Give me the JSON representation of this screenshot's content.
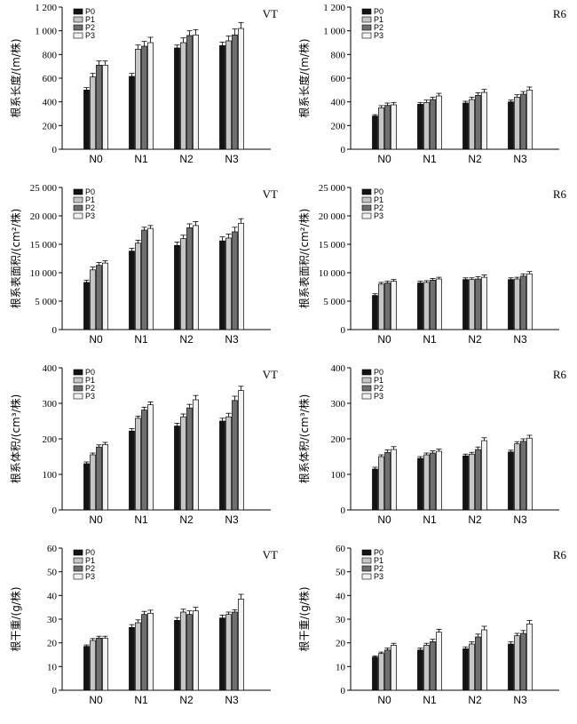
{
  "figure": {
    "legend_labels": [
      "P0",
      "P1",
      "P2",
      "P3"
    ],
    "colors": [
      "#141414",
      "#c6c6c6",
      "#6f6f6f",
      "#f2f2f2"
    ]
  },
  "chart_data": [
    {
      "type": "bar",
      "tag": "VT",
      "ylabel": "根系长度/(m/株)",
      "ylim": [
        0,
        1200
      ],
      "yticks": [
        0,
        200,
        400,
        600,
        800,
        1000,
        1200
      ],
      "ytick_labels": [
        "0",
        "200",
        "400",
        "600",
        "800",
        "1 000",
        "1 200"
      ],
      "categories": [
        "N0",
        "N1",
        "N2",
        "N3"
      ],
      "legend": "top-left",
      "grid": false,
      "series": [
        {
          "name": "P0",
          "values": [
            500,
            615,
            855,
            875
          ],
          "errors": [
            20,
            25,
            25,
            30
          ]
        },
        {
          "name": "P1",
          "values": [
            610,
            845,
            900,
            915
          ],
          "errors": [
            30,
            35,
            40,
            40
          ]
        },
        {
          "name": "P2",
          "values": [
            710,
            870,
            960,
            965
          ],
          "errors": [
            35,
            40,
            40,
            50
          ]
        },
        {
          "name": "P3",
          "values": [
            710,
            900,
            965,
            1020
          ],
          "errors": [
            35,
            45,
            45,
            50
          ]
        }
      ]
    },
    {
      "type": "bar",
      "tag": "R6",
      "ylabel": "根系长度/(m/株)",
      "ylim": [
        0,
        1200
      ],
      "yticks": [
        0,
        200,
        400,
        600,
        800,
        1000,
        1200
      ],
      "ytick_labels": [
        "0",
        "200",
        "400",
        "600",
        "800",
        "1 000",
        "1 200"
      ],
      "categories": [
        "N0",
        "N1",
        "N2",
        "N3"
      ],
      "legend": "top-left",
      "grid": false,
      "series": [
        {
          "name": "P0",
          "values": [
            280,
            380,
            390,
            400
          ],
          "errors": [
            12,
            15,
            15,
            15
          ]
        },
        {
          "name": "P1",
          "values": [
            350,
            395,
            420,
            440
          ],
          "errors": [
            18,
            20,
            20,
            20
          ]
        },
        {
          "name": "P2",
          "values": [
            370,
            420,
            455,
            465
          ],
          "errors": [
            20,
            20,
            22,
            22
          ]
        },
        {
          "name": "P3",
          "values": [
            375,
            450,
            480,
            500
          ],
          "errors": [
            20,
            22,
            25,
            25
          ]
        }
      ]
    },
    {
      "type": "bar",
      "tag": "VT",
      "ylabel": "根系表面积/(cm²/株)",
      "ylim": [
        0,
        25000
      ],
      "yticks": [
        0,
        5000,
        10000,
        15000,
        20000,
        25000
      ],
      "ytick_labels": [
        "0",
        "5 000",
        "10 000",
        "15 000",
        "20 000",
        "25 000"
      ],
      "categories": [
        "N0",
        "N1",
        "N2",
        "N3"
      ],
      "legend": "top-left",
      "grid": false,
      "series": [
        {
          "name": "P0",
          "values": [
            8300,
            13800,
            14800,
            15600
          ],
          "errors": [
            400,
            500,
            600,
            700
          ]
        },
        {
          "name": "P1",
          "values": [
            10500,
            15200,
            16000,
            16100
          ],
          "errors": [
            500,
            500,
            600,
            700
          ]
        },
        {
          "name": "P2",
          "values": [
            11300,
            17500,
            17900,
            17200
          ],
          "errors": [
            500,
            500,
            700,
            800
          ]
        },
        {
          "name": "P3",
          "values": [
            11700,
            17800,
            18300,
            18700
          ],
          "errors": [
            400,
            500,
            700,
            800
          ]
        }
      ]
    },
    {
      "type": "bar",
      "tag": "R6",
      "ylabel": "根系表面积/(cm²/株)",
      "ylim": [
        0,
        25000
      ],
      "yticks": [
        0,
        5000,
        10000,
        15000,
        20000,
        25000
      ],
      "ytick_labels": [
        "0",
        "5 000",
        "10 000",
        "15 000",
        "20 000",
        "25 000"
      ],
      "categories": [
        "N0",
        "N1",
        "N2",
        "N3"
      ],
      "legend": "top-left",
      "grid": false,
      "series": [
        {
          "name": "P0",
          "values": [
            6000,
            8200,
            8800,
            8800
          ],
          "errors": [
            300,
            300,
            300,
            300
          ]
        },
        {
          "name": "P1",
          "values": [
            8000,
            8300,
            8800,
            8900
          ],
          "errors": [
            300,
            300,
            300,
            300
          ]
        },
        {
          "name": "P2",
          "values": [
            8200,
            8700,
            8900,
            9400
          ],
          "errors": [
            300,
            300,
            400,
            400
          ]
        },
        {
          "name": "P3",
          "values": [
            8500,
            8900,
            9200,
            9800
          ],
          "errors": [
            300,
            300,
            400,
            400
          ]
        }
      ]
    },
    {
      "type": "bar",
      "tag": "VT",
      "ylabel": "根系体积/(cm³/株)",
      "ylim": [
        0,
        400
      ],
      "yticks": [
        0,
        100,
        200,
        300,
        400
      ],
      "ytick_labels": [
        "0",
        "100",
        "200",
        "300",
        "400"
      ],
      "categories": [
        "N0",
        "N1",
        "N2",
        "N3"
      ],
      "legend": "top-left",
      "grid": false,
      "series": [
        {
          "name": "P0",
          "values": [
            130,
            222,
            236,
            250
          ],
          "errors": [
            5,
            7,
            8,
            8
          ]
        },
        {
          "name": "P1",
          "values": [
            155,
            258,
            262,
            262
          ],
          "errors": [
            5,
            6,
            8,
            10
          ]
        },
        {
          "name": "P2",
          "values": [
            177,
            281,
            287,
            308
          ],
          "errors": [
            6,
            8,
            10,
            12
          ]
        },
        {
          "name": "P3",
          "values": [
            184,
            296,
            310,
            336
          ],
          "errors": [
            6,
            8,
            12,
            12
          ]
        }
      ]
    },
    {
      "type": "bar",
      "tag": "R6",
      "ylabel": "根系体积/(cm³/株)",
      "ylim": [
        0,
        400
      ],
      "yticks": [
        0,
        100,
        200,
        300,
        400
      ],
      "ytick_labels": [
        "0",
        "100",
        "200",
        "300",
        "400"
      ],
      "categories": [
        "N0",
        "N1",
        "N2",
        "N3"
      ],
      "legend": "top-left",
      "grid": false,
      "series": [
        {
          "name": "P0",
          "values": [
            115,
            145,
            152,
            163
          ],
          "errors": [
            5,
            5,
            5,
            5
          ]
        },
        {
          "name": "P1",
          "values": [
            150,
            155,
            157,
            186
          ],
          "errors": [
            5,
            5,
            5,
            6
          ]
        },
        {
          "name": "P2",
          "values": [
            162,
            160,
            170,
            193
          ],
          "errors": [
            7,
            6,
            7,
            7
          ]
        },
        {
          "name": "P3",
          "values": [
            170,
            165,
            195,
            202
          ],
          "errors": [
            8,
            6,
            8,
            8
          ]
        }
      ]
    },
    {
      "type": "bar",
      "tag": "VT",
      "ylabel": "根干重/(g/株)",
      "ylim": [
        0,
        60
      ],
      "yticks": [
        0,
        10,
        20,
        30,
        40,
        50,
        60
      ],
      "ytick_labels": [
        "0",
        "10",
        "20",
        "30",
        "40",
        "50",
        "60"
      ],
      "categories": [
        "N0",
        "N1",
        "N2",
        "N3"
      ],
      "legend": "top-left",
      "grid": false,
      "series": [
        {
          "name": "P0",
          "values": [
            18.5,
            26.5,
            29.5,
            30.5
          ],
          "errors": [
            0.6,
            1.2,
            1.2,
            1.2
          ]
        },
        {
          "name": "P1",
          "values": [
            21.0,
            28.5,
            33.0,
            32.0
          ],
          "errors": [
            0.8,
            1.2,
            1.2,
            1.0
          ]
        },
        {
          "name": "P2",
          "values": [
            22.0,
            32.0,
            32.0,
            33.0
          ],
          "errors": [
            0.8,
            1.3,
            1.5,
            1.0
          ]
        },
        {
          "name": "P3",
          "values": [
            22.0,
            32.5,
            33.5,
            38.5
          ],
          "errors": [
            0.8,
            1.3,
            1.5,
            2.0
          ]
        }
      ]
    },
    {
      "type": "bar",
      "tag": "R6",
      "ylabel": "根干重/(g/株)",
      "ylim": [
        0,
        60
      ],
      "yticks": [
        0,
        10,
        20,
        30,
        40,
        50,
        60
      ],
      "ytick_labels": [
        "0",
        "10",
        "20",
        "30",
        "40",
        "50",
        "60"
      ],
      "categories": [
        "N0",
        "N1",
        "N2",
        "N3"
      ],
      "legend": "top-left",
      "grid": false,
      "series": [
        {
          "name": "P0",
          "values": [
            14.0,
            17.0,
            17.5,
            19.5
          ],
          "errors": [
            0.5,
            0.8,
            0.8,
            1.0
          ]
        },
        {
          "name": "P1",
          "values": [
            15.5,
            19.0,
            19.5,
            23.0
          ],
          "errors": [
            0.6,
            0.8,
            0.9,
            1.0
          ]
        },
        {
          "name": "P2",
          "values": [
            17.0,
            20.5,
            22.5,
            24.0
          ],
          "errors": [
            0.8,
            1.0,
            1.2,
            1.2
          ]
        },
        {
          "name": "P3",
          "values": [
            19.0,
            24.5,
            25.5,
            28.0
          ],
          "errors": [
            0.8,
            1.2,
            1.5,
            1.5
          ]
        }
      ]
    }
  ]
}
